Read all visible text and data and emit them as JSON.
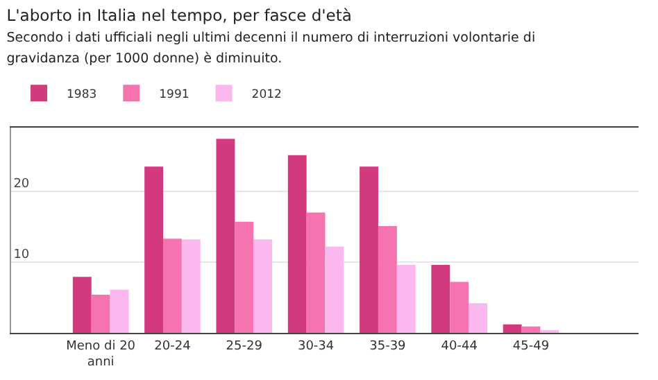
{
  "chart_data": {
    "type": "bar",
    "title": "L'aborto in Italia nel tempo, per fasce d'età",
    "subtitle": "Secondo i dati ufficiali negli ultimi decenni il numero di interruzioni volontarie di gravidanza (per 1000 donne) è diminuito.",
    "categories": [
      "Meno di 20 anni",
      "20-24",
      "25-29",
      "30-34",
      "35-39",
      "40-44",
      "45-49"
    ],
    "series": [
      {
        "name": "1983",
        "color": "#d33a7e",
        "values": [
          7.9,
          23.5,
          27.4,
          25.1,
          23.5,
          9.6,
          1.2
        ]
      },
      {
        "name": "1991",
        "color": "#f573ae",
        "values": [
          5.4,
          13.3,
          15.7,
          17.0,
          15.1,
          7.2,
          0.9
        ]
      },
      {
        "name": "2012",
        "color": "#fbb8ef",
        "values": [
          6.1,
          13.2,
          13.2,
          12.2,
          9.6,
          4.2,
          0.4
        ]
      }
    ],
    "ylim": [
      0,
      29
    ],
    "yticks": [
      {
        "value": 0,
        "label": null
      },
      10,
      20
    ],
    "grid": "y",
    "legend": "top left"
  }
}
